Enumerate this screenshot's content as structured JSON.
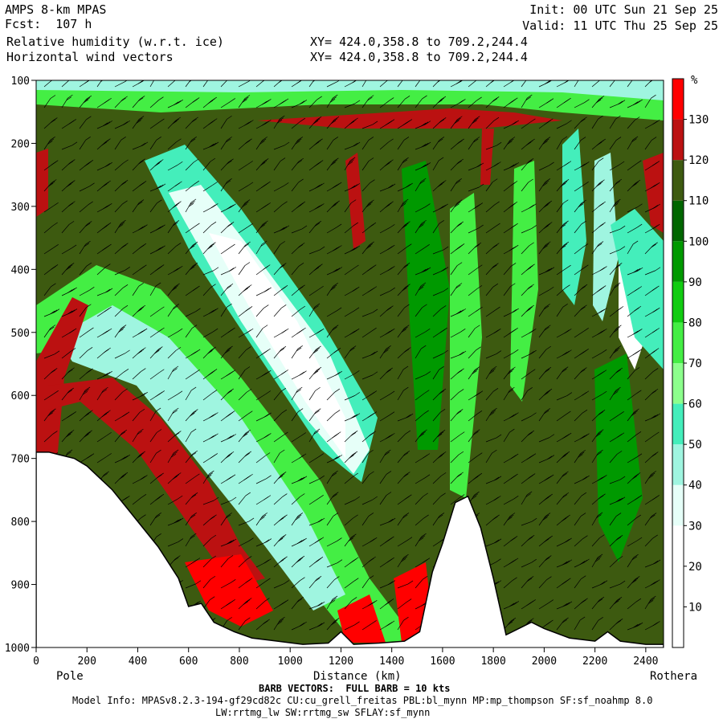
{
  "header": {
    "model": "AMPS 8-km MPAS",
    "fcst": "Fcst:  107 h",
    "field1": "Relative humidity (w.r.t. ice)",
    "field2": "Horizontal wind vectors",
    "xy1": "XY= 424.0,358.8 to 709.2,244.4",
    "xy2": "XY= 424.0,358.8 to 709.2,244.4",
    "init": "Init: 00 UTC Sun 21 Sep 25",
    "valid": "Valid: 11 UTC Thu 25 Sep 25"
  },
  "footer": {
    "barb_note": "BARB VECTORS:  FULL BARB = 10 kts",
    "model_info": "Model Info: MPASv8.2.3-194-gf29cd82c CU:cu_grell_freitas PBL:bl_mynn MP:mp_thompson SF:sf_noahmp 8.0",
    "model_info2": "LW:rrtmg_lw SW:rrtmg_sw SFLAY:sf_mynn"
  },
  "chart_data": {
    "type": "heatmap",
    "title": "Relative humidity (w.r.t. ice)",
    "subtitle": "Horizontal wind vectors",
    "xlabel": "Distance (km)",
    "ylabel": "",
    "x_start_label": "Pole",
    "x_end_label": "Rothera",
    "xlim": [
      0,
      2470
    ],
    "ylim": [
      1000,
      100
    ],
    "x_ticks": [
      0,
      200,
      400,
      600,
      800,
      1000,
      1200,
      1400,
      1600,
      1800,
      2000,
      2200,
      2400
    ],
    "y_ticks": [
      100,
      200,
      300,
      400,
      500,
      600,
      700,
      800,
      900,
      1000
    ],
    "colorbar": {
      "unit": "%",
      "levels": [
        10,
        20,
        30,
        40,
        50,
        60,
        70,
        80,
        90,
        100,
        110,
        120,
        130
      ],
      "colors": [
        "#ffffff",
        "#ffffff",
        "#ffffff",
        "#e6fff8",
        "#9ff5e0",
        "#44eebb",
        "#8cff8c",
        "#44ee44",
        "#11cc11",
        "#009900",
        "#006600",
        "#3d5a10",
        "#bb1111",
        "#ff0000"
      ]
    },
    "terrain_pressure_hpa": [
      [
        0,
        690
      ],
      [
        50,
        690
      ],
      [
        100,
        695
      ],
      [
        150,
        700
      ],
      [
        200,
        712
      ],
      [
        300,
        750
      ],
      [
        400,
        800
      ],
      [
        480,
        840
      ],
      [
        560,
        890
      ],
      [
        600,
        935
      ],
      [
        650,
        930
      ],
      [
        700,
        960
      ],
      [
        780,
        975
      ],
      [
        850,
        985
      ],
      [
        950,
        990
      ],
      [
        1050,
        995
      ],
      [
        1150,
        993
      ],
      [
        1200,
        975
      ],
      [
        1250,
        995
      ],
      [
        1350,
        993
      ],
      [
        1450,
        990
      ],
      [
        1510,
        975
      ],
      [
        1560,
        880
      ],
      [
        1600,
        835
      ],
      [
        1650,
        770
      ],
      [
        1700,
        760
      ],
      [
        1750,
        810
      ],
      [
        1800,
        890
      ],
      [
        1850,
        980
      ],
      [
        1900,
        970
      ],
      [
        1950,
        960
      ],
      [
        2000,
        970
      ],
      [
        2100,
        985
      ],
      [
        2200,
        990
      ],
      [
        2250,
        975
      ],
      [
        2300,
        990
      ],
      [
        2400,
        995
      ],
      [
        2470,
        995
      ]
    ]
  }
}
